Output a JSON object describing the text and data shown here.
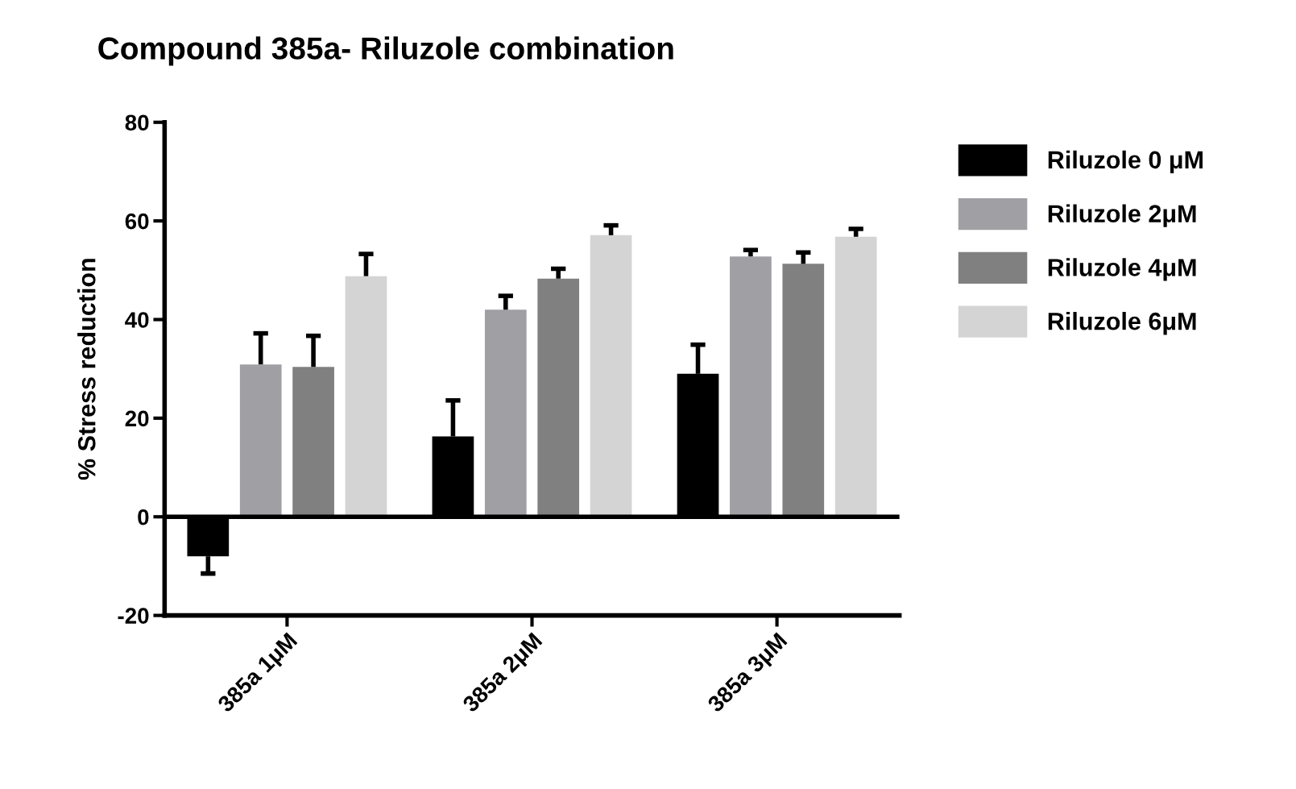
{
  "chart_data": {
    "type": "bar",
    "title": "Compound 385a- Riluzole combination",
    "ylabel": "% Stress reduction",
    "categories": [
      "385a 1μM",
      "385a 2μM",
      "385a 3μM"
    ],
    "series": [
      {
        "name": "Riluzole 0 μM",
        "color": "#000000",
        "values": [
          -8.0,
          16.3,
          29.0
        ],
        "errors": [
          [
            -11.5,
            -8.0
          ],
          [
            16.3,
            23.6
          ],
          [
            29.0,
            34.9
          ]
        ]
      },
      {
        "name": "Riluzole 2μM",
        "color": "#a0a0a4",
        "values": [
          30.9,
          42.0,
          52.8
        ],
        "errors": [
          [
            30.9,
            37.2
          ],
          [
            42.0,
            44.8
          ],
          [
            52.8,
            54.1
          ]
        ]
      },
      {
        "name": "Riluzole 4μM",
        "color": "#808080",
        "values": [
          30.4,
          48.3,
          51.3
        ],
        "errors": [
          [
            30.4,
            36.7
          ],
          [
            48.3,
            50.3
          ],
          [
            51.3,
            53.6
          ]
        ]
      },
      {
        "name": "Riluzole 6μM",
        "color": "#d4d4d4",
        "values": [
          48.8,
          57.1,
          56.8
        ],
        "errors": [
          [
            48.8,
            53.3
          ],
          [
            57.1,
            59.1
          ],
          [
            56.8,
            58.4
          ]
        ]
      }
    ],
    "ylim": [
      -20,
      80
    ],
    "yticks": [
      -20,
      0,
      20,
      40,
      60,
      80
    ],
    "ref_lines": [
      {
        "axis": "y",
        "value": 0,
        "color": "#000000"
      }
    ],
    "grid": false,
    "legend": "right"
  }
}
